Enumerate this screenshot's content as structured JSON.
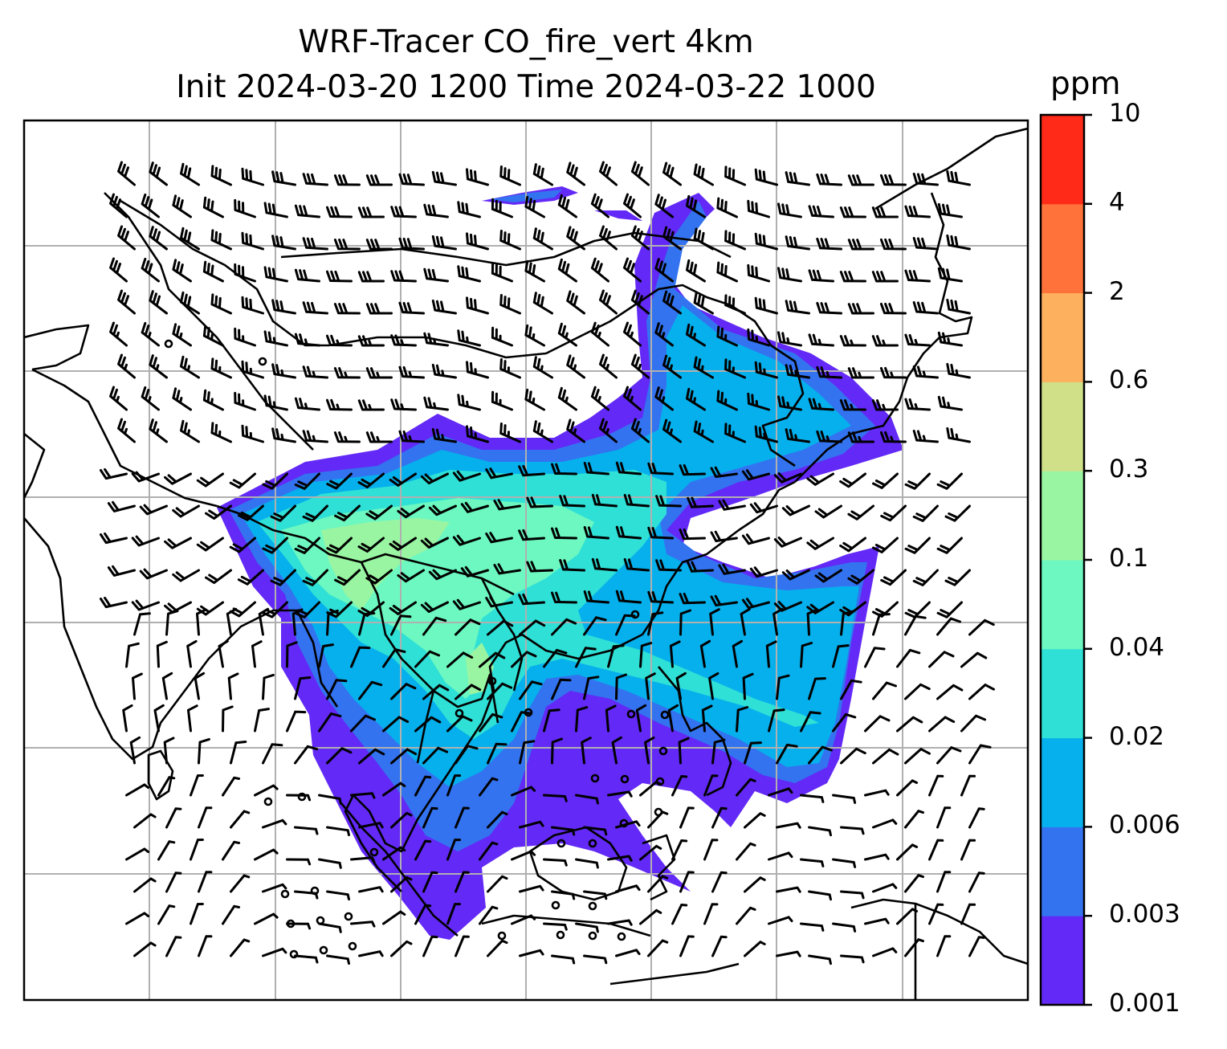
{
  "title": {
    "line1": "WRF-Tracer CO_fire_vert 4km",
    "line2": "Init 2024-03-20 1200 Time 2024-03-22 1000"
  },
  "colorbar": {
    "unit": "ppm",
    "levels": [
      "0.001",
      "0.003",
      "0.006",
      "0.02",
      "0.04",
      "0.1",
      "0.3",
      "0.6",
      "2",
      "4",
      "10"
    ],
    "colors": [
      "#6329f6",
      "#3373f0",
      "#06b0ec",
      "#2fe0d6",
      "#6cf8c0",
      "#9af5a2",
      "#d0e088",
      "#fdb15f",
      "#ff733b",
      "#ff2a18"
    ]
  },
  "map": {
    "gridlines": true,
    "gridline_color": "#b0b0b0",
    "coastline_color": "#000000",
    "field_name": "CO_fire_vert"
  }
}
